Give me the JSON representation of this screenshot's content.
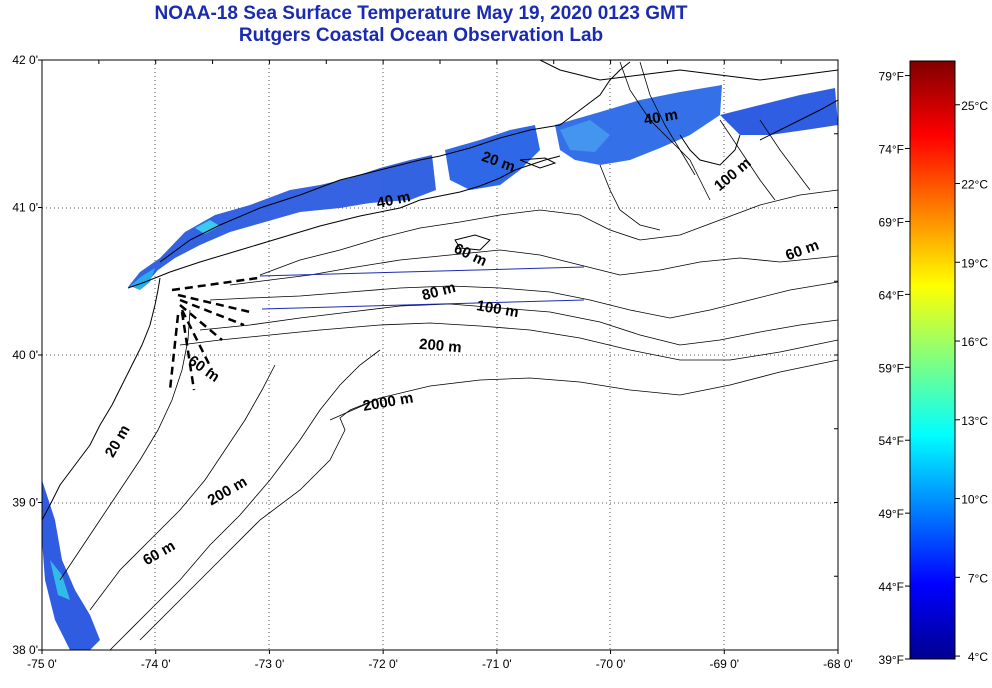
{
  "title": {
    "line1": "NOAA-18 Sea Surface Temperature May 19, 2020 0123 GMT",
    "line2": "Rutgers Coastal Ocean Observation Lab"
  },
  "map": {
    "lon_range": [
      -75,
      -68
    ],
    "lat_range": [
      38,
      42
    ],
    "lon_ticks": [
      {
        "value": -75,
        "label": "-75 0'"
      },
      {
        "value": -74,
        "label": "-74 0'"
      },
      {
        "value": -73,
        "label": "-73 0'"
      },
      {
        "value": -72,
        "label": "-72 0'"
      },
      {
        "value": -71,
        "label": "-71 0'"
      },
      {
        "value": -70,
        "label": "-70 0'"
      },
      {
        "value": -69,
        "label": "-69 0'"
      },
      {
        "value": -68,
        "label": "-68 0'"
      }
    ],
    "lat_ticks": [
      {
        "value": 42,
        "label": "42 0'"
      },
      {
        "value": 41,
        "label": "41 0'"
      },
      {
        "value": 40,
        "label": "40 0'"
      },
      {
        "value": 39,
        "label": "39 0'"
      },
      {
        "value": 38,
        "label": "38 0'"
      }
    ],
    "grid": "dotted",
    "depth_labels": [
      {
        "text": "20 m",
        "lon": -71.0,
        "lat": 41.28,
        "angle": 20
      },
      {
        "text": "40 m",
        "lon": -71.9,
        "lat": 41.02,
        "angle": -12
      },
      {
        "text": "60 m",
        "lon": -71.25,
        "lat": 40.65,
        "angle": 25
      },
      {
        "text": "80 m",
        "lon": -71.5,
        "lat": 40.4,
        "angle": -15
      },
      {
        "text": "100 m",
        "lon": -71.0,
        "lat": 40.28,
        "angle": 10
      },
      {
        "text": "200 m",
        "lon": -71.5,
        "lat": 40.03,
        "angle": 5
      },
      {
        "text": "2000 m",
        "lon": -71.95,
        "lat": 39.65,
        "angle": -10
      },
      {
        "text": "60 m",
        "lon": -73.6,
        "lat": 39.88,
        "angle": 35
      },
      {
        "text": "20 m",
        "lon": -74.3,
        "lat": 39.4,
        "angle": -60
      },
      {
        "text": "200 m",
        "lon": -73.35,
        "lat": 39.05,
        "angle": -30
      },
      {
        "text": "60 m",
        "lon": -73.95,
        "lat": 38.63,
        "angle": -30
      },
      {
        "text": "100 m",
        "lon": -68.9,
        "lat": 41.2,
        "angle": -40
      },
      {
        "text": "60 m",
        "lon": -68.3,
        "lat": 40.68,
        "angle": -20
      },
      {
        "text": "40 m",
        "lon": -69.55,
        "lat": 41.58,
        "angle": -10
      }
    ]
  },
  "colorbar": {
    "fahrenheit_labels": [
      "79°F",
      "74°F",
      "69°F",
      "64°F",
      "59°F",
      "54°F",
      "49°F",
      "44°F",
      "39°F"
    ],
    "celsius_labels": [
      "25°C",
      "22°C",
      "19°C",
      "16°C",
      "13°C",
      "10°C",
      "7°C",
      "4°C"
    ],
    "range_f": [
      39,
      80
    ],
    "stops": [
      "#7f0000",
      "#ff0000",
      "#ff8000",
      "#ffff00",
      "#80ff80",
      "#00ffff",
      "#0080ff",
      "#0000ff",
      "#00008f"
    ]
  }
}
